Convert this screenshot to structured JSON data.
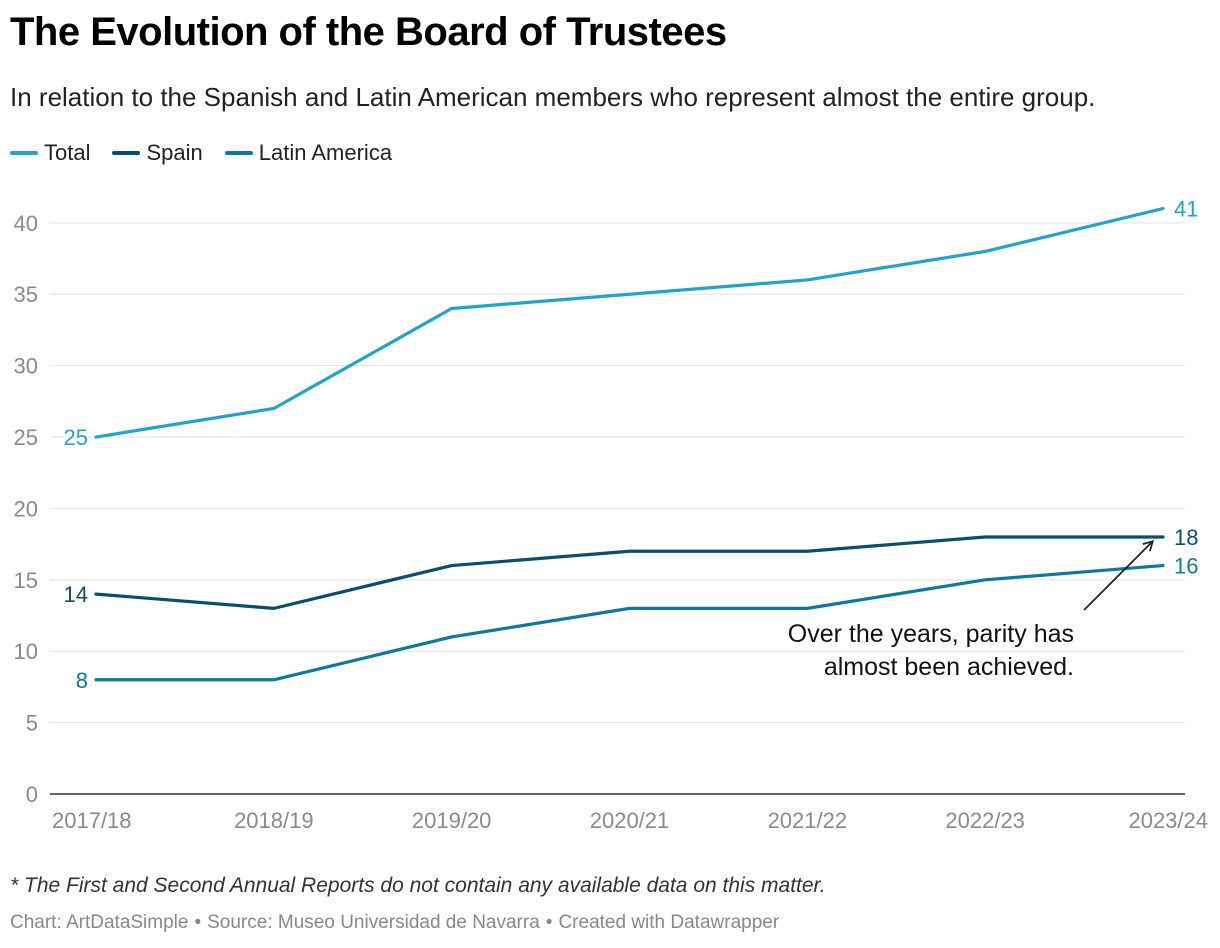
{
  "header": {
    "title": "The Evolution of the Board of Trustees",
    "subtitle": "In relation to the Spanish and Latin American members who represent almost the entire group."
  },
  "chart_data": {
    "type": "line",
    "x": [
      "2017/18",
      "2018/19",
      "2019/20",
      "2020/21",
      "2021/22",
      "2022/23",
      "2023/24"
    ],
    "series": [
      {
        "name": "Total",
        "color": "#22a3cc",
        "values": [
          25,
          27,
          34,
          35,
          36,
          38,
          41
        ]
      },
      {
        "name": "Spain",
        "color": "#0b4d6e",
        "values": [
          14,
          13,
          16,
          17,
          17,
          18,
          18
        ]
      },
      {
        "name": "Latin America",
        "color": "#0c7a9e",
        "values": [
          8,
          8,
          11,
          13,
          13,
          15,
          16
        ]
      }
    ],
    "yticks": [
      0,
      5,
      10,
      15,
      20,
      25,
      30,
      35,
      40
    ],
    "ylim": [
      0,
      43
    ],
    "grid": true,
    "legend": "top-left",
    "annotation": {
      "text_line1": "Over the years, parity has",
      "text_line2": "almost been achieved."
    }
  },
  "footer": {
    "footnote": "* The First and Second Annual Reports do not contain any available data on this matter.",
    "credit_chart": "Chart: ArtDataSimple",
    "credit_source": "Source: Museo Universidad de Navarra",
    "credit_tool": "Created with Datawrapper"
  }
}
